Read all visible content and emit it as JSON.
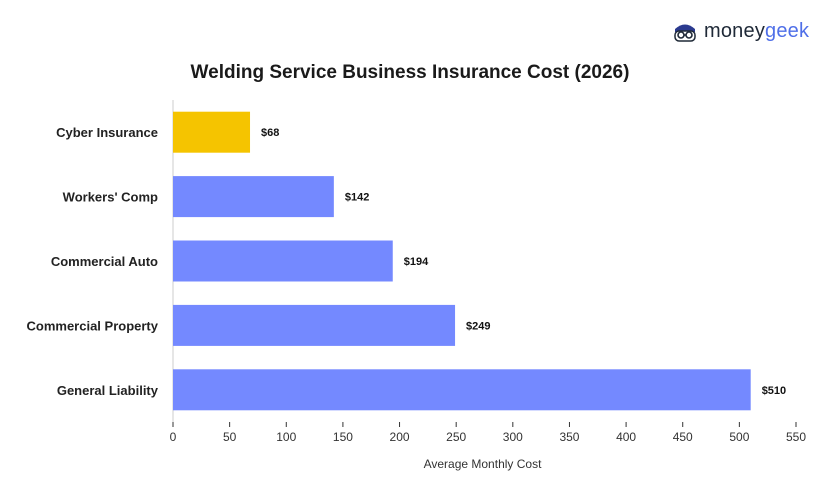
{
  "brand": {
    "name_part1": "money",
    "name_part2": "geek",
    "accent": "#4f6fe8"
  },
  "chart_data": {
    "type": "bar",
    "orientation": "horizontal",
    "title": "Welding Service Business Insurance Cost (2026)",
    "xlabel": "Average Monthly Cost",
    "ylabel": "",
    "categories": [
      "Cyber Insurance",
      "Workers' Comp",
      "Commercial Auto",
      "Commercial Property",
      "General Liability"
    ],
    "values": [
      68,
      142,
      194,
      249,
      510
    ],
    "value_labels": [
      "$68",
      "$142",
      "$194",
      "$249",
      "$510"
    ],
    "bar_colors": [
      "#f5c400",
      "#7489ff",
      "#7489ff",
      "#7489ff",
      "#7489ff"
    ],
    "xlim": [
      0,
      550
    ],
    "xticks": [
      0,
      50,
      100,
      150,
      200,
      250,
      300,
      350,
      400,
      450,
      500,
      550
    ],
    "grid": false,
    "legend": "none"
  }
}
